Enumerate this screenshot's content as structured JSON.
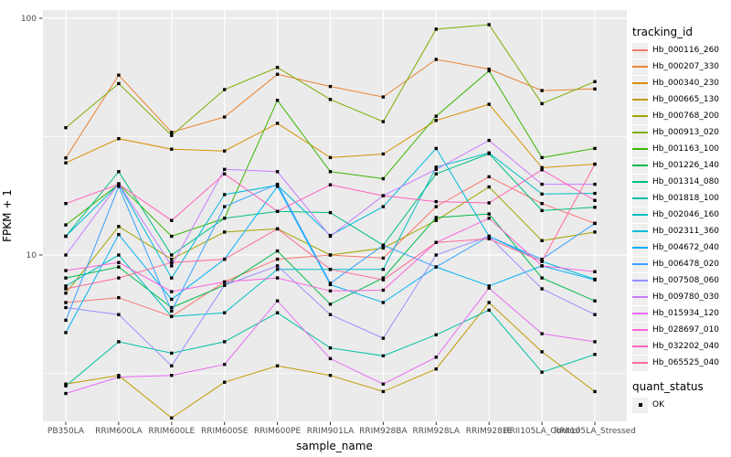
{
  "figure": {
    "xlabel": "sample_name",
    "ylabel": "FPKM + 1",
    "legend_title": "tracking_id",
    "quant_legend_title": "quant_status",
    "quant_status_label": "OK",
    "colors": {
      "panel_bg": "#EBEBEB",
      "grid": "#FFFFFF",
      "tick": "#333333",
      "tick_label": "#4D4D4D",
      "marker": "#000000",
      "legend_key_bg": "#EFEFEF"
    }
  },
  "chart_data": {
    "type": "line",
    "title": "",
    "xlabel": "sample_name",
    "ylabel": "FPKM + 1",
    "y_scale": "log10",
    "y_ticks": [
      10,
      100
    ],
    "y_minor_ticks": [
      3.162,
      31.623
    ],
    "ylim": [
      1.9,
      110
    ],
    "grid": true,
    "legend_position": "right",
    "legend_title": "tracking_id",
    "quant_legend": {
      "title": "quant_status",
      "values": [
        "OK"
      ],
      "marker": "black-square"
    },
    "marker": "black-square",
    "categories": [
      "PB350LA",
      "RRIM600LA",
      "RRIM600LE",
      "RRIM600SE",
      "RRIM600PE",
      "RRIM901LA",
      "RRIM928BA",
      "RRIM928LA",
      "RRIM928LE",
      "RRII105LA_Control",
      "RRII105LA_Stressed"
    ],
    "series": [
      {
        "name": "Hb_000116_260",
        "color": "#F8766D",
        "values": [
          6.3,
          6.6,
          5.5,
          7.7,
          9.6,
          10.0,
          9.7,
          16.0,
          21.4,
          16.5,
          13.6
        ]
      },
      {
        "name": "Hb_000207_330",
        "color": "#EA8331",
        "values": [
          25.7,
          57.5,
          33.0,
          38.3,
          58.0,
          51.5,
          46.5,
          67.0,
          61.0,
          49.5,
          50.3
        ]
      },
      {
        "name": "Hb_000340_230",
        "color": "#D89000",
        "values": [
          24.5,
          31.0,
          28.0,
          27.5,
          36.0,
          25.8,
          26.7,
          37.0,
          43.3,
          23.4,
          24.2
        ]
      },
      {
        "name": "Hb_000665_130",
        "color": "#C09B00",
        "values": [
          2.85,
          3.1,
          2.05,
          2.9,
          3.4,
          3.1,
          2.65,
          3.3,
          6.3,
          3.9,
          2.65
        ]
      },
      {
        "name": "Hb_000768_200",
        "color": "#A3A500",
        "values": [
          6.9,
          13.2,
          9.6,
          12.5,
          12.9,
          10.0,
          10.7,
          14.0,
          19.4,
          11.5,
          12.5
        ]
      },
      {
        "name": "Hb_000913_020",
        "color": "#7CAE00",
        "values": [
          34.5,
          53.0,
          32.0,
          50.0,
          62.0,
          45.4,
          36.6,
          90.0,
          94.0,
          43.6,
          54.0
        ]
      },
      {
        "name": "Hb_001163_100",
        "color": "#39B600",
        "values": [
          13.4,
          19.9,
          12.0,
          14.3,
          45.0,
          22.5,
          21.0,
          38.6,
          60.0,
          25.8,
          28.2
        ]
      },
      {
        "name": "Hb_001226_140",
        "color": "#00BB4E",
        "values": [
          8.0,
          8.9,
          6.0,
          7.45,
          10.4,
          6.2,
          8.0,
          14.4,
          14.9,
          8.0,
          6.4
        ]
      },
      {
        "name": "Hb_001314_080",
        "color": "#00BF7D",
        "values": [
          12.0,
          22.5,
          10.0,
          14.3,
          15.3,
          15.1,
          11.0,
          22.0,
          26.8,
          15.4,
          15.9
        ]
      },
      {
        "name": "Hb_001818_100",
        "color": "#00C1A3",
        "values": [
          2.8,
          4.3,
          3.85,
          4.3,
          5.7,
          4.05,
          3.75,
          4.6,
          5.85,
          3.2,
          3.8
        ]
      },
      {
        "name": "Hb_002046_160",
        "color": "#00BFC4",
        "values": [
          7.4,
          10.0,
          5.5,
          5.7,
          8.7,
          8.7,
          8.7,
          23.5,
          27.0,
          18.1,
          18.2
        ]
      },
      {
        "name": "Hb_002311_360",
        "color": "#00BADE",
        "values": [
          12.0,
          19.9,
          8.0,
          18.0,
          19.7,
          12.1,
          16.0,
          28.2,
          12.0,
          9.4,
          7.9
        ]
      },
      {
        "name": "Hb_004672_040",
        "color": "#00B0F6",
        "values": [
          4.7,
          12.2,
          6.5,
          9.6,
          19.5,
          7.5,
          6.3,
          8.9,
          7.4,
          9.0,
          7.85
        ]
      },
      {
        "name": "Hb_006478_020",
        "color": "#35A2FF",
        "values": [
          5.3,
          19.5,
          5.8,
          16.0,
          19.9,
          7.6,
          11.0,
          8.9,
          12.0,
          9.6,
          13.6
        ]
      },
      {
        "name": "Hb_007508_060",
        "color": "#9590FF",
        "values": [
          6.0,
          5.6,
          3.4,
          7.45,
          9.0,
          5.6,
          4.45,
          10.0,
          12.0,
          7.2,
          5.6
        ]
      },
      {
        "name": "Hb_009780_030",
        "color": "#C77CFF",
        "values": [
          10.0,
          20.0,
          9.0,
          23.0,
          22.5,
          12.0,
          17.8,
          23.0,
          30.5,
          19.9,
          19.9
        ]
      },
      {
        "name": "Hb_015934_120",
        "color": "#E76BF3",
        "values": [
          2.6,
          3.05,
          3.1,
          3.45,
          6.4,
          3.65,
          2.85,
          3.7,
          7.25,
          4.65,
          4.3
        ]
      },
      {
        "name": "Hb_028697_010",
        "color": "#FA62DB",
        "values": [
          8.6,
          9.3,
          7.0,
          7.7,
          8.0,
          7.05,
          7.1,
          11.3,
          14.3,
          9.0,
          8.5
        ]
      },
      {
        "name": "Hb_032202_040",
        "color": "#FF62BC",
        "values": [
          16.5,
          19.9,
          14.0,
          22.0,
          15.3,
          19.8,
          17.8,
          16.8,
          16.6,
          22.9,
          17.0
        ]
      },
      {
        "name": "Hb_065525_040",
        "color": "#FF6A98",
        "values": [
          7.2,
          8.0,
          9.3,
          9.6,
          12.9,
          8.7,
          7.85,
          11.3,
          11.7,
          9.4,
          24.2
        ]
      }
    ]
  }
}
